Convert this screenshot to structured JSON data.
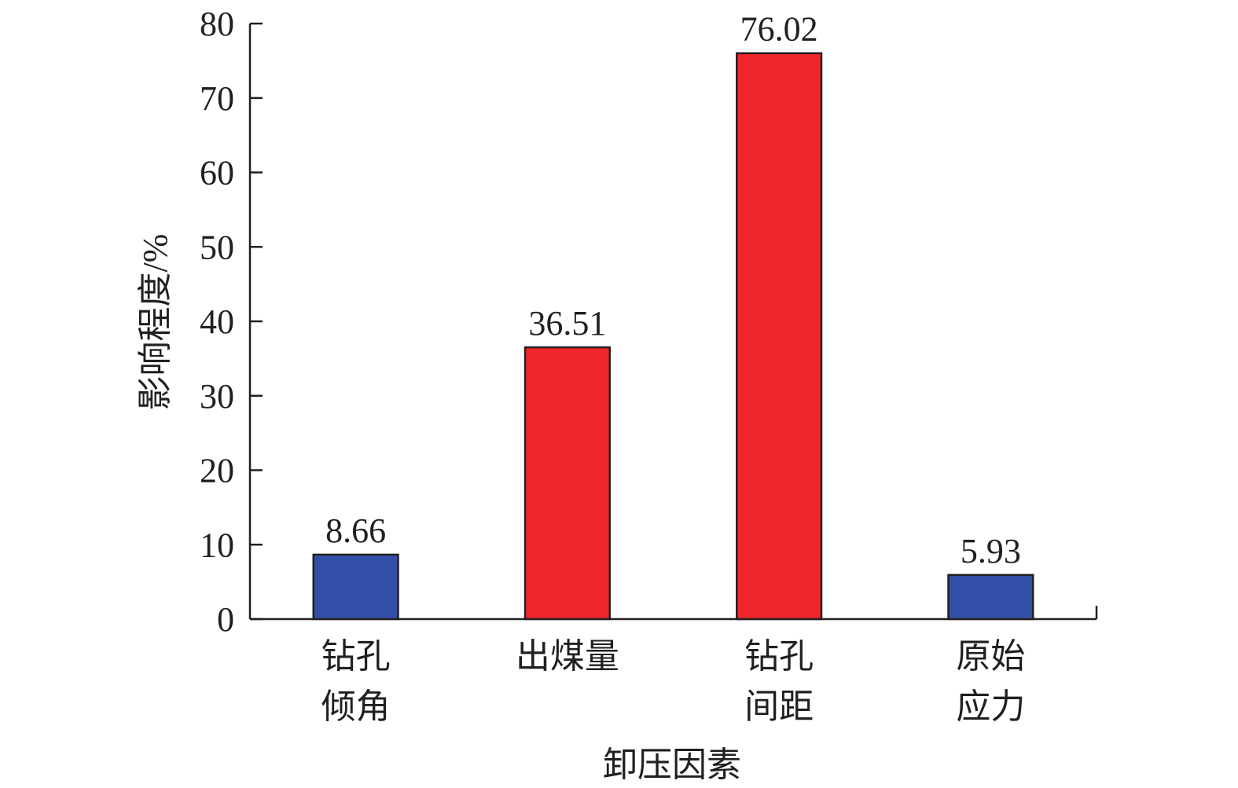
{
  "chart_data": {
    "type": "bar",
    "x_label": "卸压因素",
    "y_label": "影响程度/%",
    "categories": [
      [
        "钻孔",
        "倾角"
      ],
      [
        "出煤量"
      ],
      [
        "钻孔",
        "间距"
      ],
      [
        "原始",
        "应力"
      ]
    ],
    "values": [
      8.66,
      36.51,
      76.02,
      5.93
    ],
    "colors": [
      "#3350a8",
      "#ee262b",
      "#ee262b",
      "#3350a8"
    ],
    "ylim": [
      0,
      80
    ],
    "yticks": [
      0,
      10,
      20,
      30,
      40,
      50,
      60,
      70,
      80
    ],
    "grid": false
  }
}
